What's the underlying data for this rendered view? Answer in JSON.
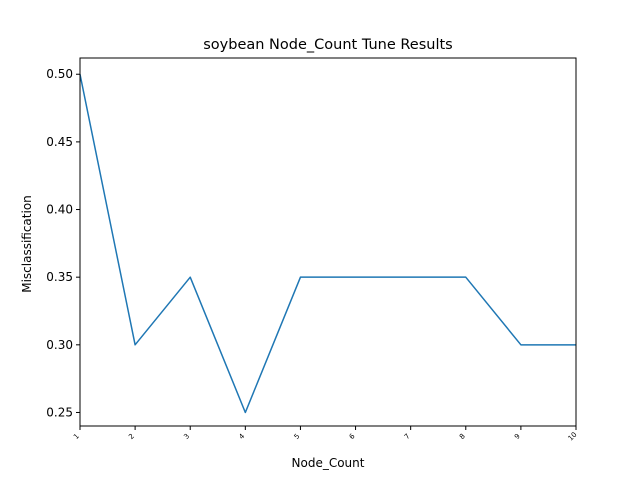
{
  "chart_data": {
    "type": "line",
    "title": "soybean Node_Count Tune Results",
    "xlabel": "Node_Count",
    "ylabel": "Misclassification",
    "x": [
      1,
      2,
      3,
      4,
      5,
      6,
      7,
      8,
      9,
      10
    ],
    "series": [
      {
        "values": [
          0.5,
          0.3,
          0.35,
          0.25,
          0.35,
          0.35,
          0.35,
          0.35,
          0.3,
          0.3
        ]
      }
    ],
    "xlim": [
      1,
      10
    ],
    "ylim": [
      0.24,
      0.512
    ],
    "x_ticks": [
      1,
      2,
      3,
      4,
      5,
      6,
      7,
      8,
      9,
      10
    ],
    "y_ticks": [
      0.25,
      0.3,
      0.35,
      0.4,
      0.45,
      0.5
    ],
    "y_tick_labels": [
      "0.25",
      "0.30",
      "0.35",
      "0.40",
      "0.45",
      "0.50"
    ],
    "grid": false,
    "line_color": "#1f77b4"
  }
}
